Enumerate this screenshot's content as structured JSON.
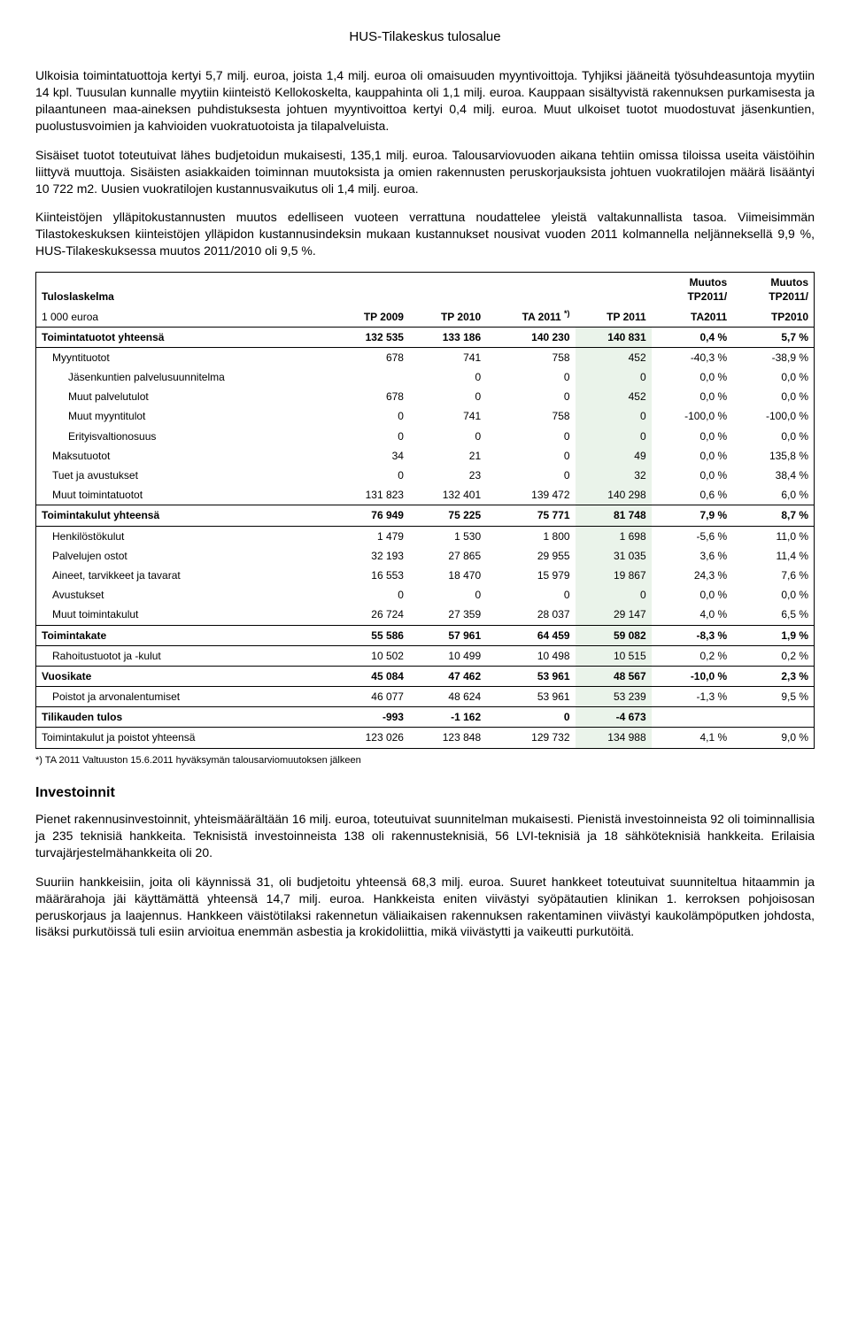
{
  "header": {
    "title": "HUS-Tilakeskus tulosalue"
  },
  "paragraphs": {
    "p1": "Ulkoisia toimintatuottoja kertyi 5,7 milj. euroa, joista 1,4 milj. euroa oli omaisuuden myyntivoittoja. Tyhjiksi jääneitä työsuhdeasuntoja myytiin 14 kpl. Tuusulan kunnalle myytiin kiinteistö Kellokoskelta, kauppahinta oli 1,1 milj. euroa. Kauppaan sisältyvistä rakennuksen purkamisesta ja pilaantuneen maa-aineksen puhdistuksesta johtuen myyntivoittoa kertyi 0,4 milj. euroa. Muut ulkoiset tuotot muodostuvat jäsenkuntien, puolustusvoimien ja kahvioiden vuokratuotoista ja tilapalveluista.",
    "p2": "Sisäiset tuotot toteutuivat lähes budjetoidun mukaisesti, 135,1 milj. euroa. Talousarviovuoden aikana tehtiin omissa tiloissa useita väistöihin liittyvä muuttoja. Sisäisten asiakkaiden toiminnan muutoksista ja omien rakennusten peruskorjauksista johtuen vuokratilojen määrä lisääntyi 10 722 m2. Uusien vuokratilojen kustannusvaikutus oli 1,4 milj. euroa.",
    "p3": "Kiinteistöjen ylläpitokustannusten muutos edelliseen vuoteen verrattuna noudattelee yleistä valtakunnallista tasoa. Viimeisimmän Tilastokeskuksen kiinteistöjen ylläpidon kustannusindeksin mukaan kustannukset nousivat vuoden 2011 kolmannella neljänneksellä 9,9 %, HUS-Tilakeskuksessa muutos 2011/2010 oli 9,5 %.",
    "footnote": "*) TA 2011 Valtuuston 15.6.2011 hyväksymän talousarviomuutoksen jälkeen",
    "invest_heading": "Investoinnit",
    "p4": "Pienet rakennusinvestoinnit, yhteismäärältään 16 milj. euroa, toteutuivat suunnitelman mukaisesti. Pienistä investoinneista 92 oli toiminnallisia ja 235 teknisiä hankkeita. Teknisistä investoinneista 138 oli rakennusteknisiä, 56 LVI-teknisiä ja 18 sähköteknisiä hankkeita. Erilaisia turvajärjestelmähankkeita oli 20.",
    "p5": "Suuriin hankkeisiin, joita oli käynnissä 31, oli budjetoitu yhteensä 68,3 milj. euroa. Suuret hankkeet toteutuivat suunniteltua hitaammin ja määrärahoja jäi käyttämättä yhteensä 14,7 milj. euroa. Hankkeista eniten viivästyi syöpätautien klinikan 1. kerroksen pohjoisosan peruskorjaus ja laajennus. Hankkeen väistötilaksi rakennetun väliaikaisen rakennuksen rakentaminen viivästyi kaukolämpöputken johdosta, lisäksi purkutöissä tuli esiin arvioitua enemmän asbestia ja krokidoliittia, mikä viivästytti ja vaikeutti purkutöitä."
  },
  "table": {
    "font_size": 12,
    "header_bg": "#ffffff",
    "highlight_bg": "#eaf3ea",
    "border_color": "#000000",
    "title_row": "Tuloslaskelma",
    "unit_row": "1 000 euroa",
    "columns": [
      "",
      "TP 2009",
      "TP 2010",
      "TA 2011 *)",
      "TP 2011",
      "Muutos TP2011/ TA2011",
      "Muutos TP2011/ TP2010"
    ],
    "col_head": {
      "c1": "TP 2009",
      "c2": "TP 2010",
      "c3": "TA 2011",
      "c3_sup": "*)",
      "c4": "TP 2011",
      "c5a": "Muutos",
      "c5b": "TP2011/",
      "c5c": "TA2011",
      "c6a": "Muutos",
      "c6b": "TP2011/",
      "c6c": "TP2010"
    },
    "rows": [
      {
        "label": "Toimintatuotot yhteensä",
        "v": [
          "132 535",
          "133 186",
          "140 230",
          "140 831",
          "0,4 %",
          "5,7 %"
        ],
        "bold": true,
        "indent": 0,
        "bt": true,
        "bb": true
      },
      {
        "label": "Myyntituotot",
        "v": [
          "678",
          "741",
          "758",
          "452",
          "-40,3 %",
          "-38,9 %"
        ],
        "indent": 1
      },
      {
        "label": "Jäsenkuntien palvelusuunnitelma",
        "v": [
          "",
          "0",
          "0",
          "0",
          "0,0 %",
          "0,0 %"
        ],
        "indent": 2
      },
      {
        "label": "Muut palvelutulot",
        "v": [
          "678",
          "0",
          "0",
          "452",
          "0,0 %",
          "0,0 %"
        ],
        "indent": 2
      },
      {
        "label": "Muut myyntitulot",
        "v": [
          "0",
          "741",
          "758",
          "0",
          "-100,0 %",
          "-100,0 %"
        ],
        "indent": 2
      },
      {
        "label": "Erityisvaltionosuus",
        "v": [
          "0",
          "0",
          "0",
          "0",
          "0,0 %",
          "0,0 %"
        ],
        "indent": 2
      },
      {
        "label": "Maksutuotot",
        "v": [
          "34",
          "21",
          "0",
          "49",
          "0,0 %",
          "135,8 %"
        ],
        "indent": 1
      },
      {
        "label": "Tuet ja avustukset",
        "v": [
          "0",
          "23",
          "0",
          "32",
          "0,0 %",
          "38,4 %"
        ],
        "indent": 1
      },
      {
        "label": "Muut toimintatuotot",
        "v": [
          "131 823",
          "132 401",
          "139 472",
          "140 298",
          "0,6 %",
          "6,0 %"
        ],
        "indent": 1,
        "bb": true
      },
      {
        "label": "Toimintakulut yhteensä",
        "v": [
          "76 949",
          "75 225",
          "75 771",
          "81 748",
          "7,9 %",
          "8,7 %"
        ],
        "bold": true,
        "indent": 0,
        "bb": true
      },
      {
        "label": "Henkilöstökulut",
        "v": [
          "1 479",
          "1 530",
          "1 800",
          "1 698",
          "-5,6 %",
          "11,0 %"
        ],
        "indent": 1
      },
      {
        "label": "Palvelujen ostot",
        "v": [
          "32 193",
          "27 865",
          "29 955",
          "31 035",
          "3,6 %",
          "11,4 %"
        ],
        "indent": 1
      },
      {
        "label": "Aineet, tarvikkeet ja tavarat",
        "v": [
          "16 553",
          "18 470",
          "15 979",
          "19 867",
          "24,3 %",
          "7,6 %"
        ],
        "indent": 1
      },
      {
        "label": "Avustukset",
        "v": [
          "0",
          "0",
          "0",
          "0",
          "0,0 %",
          "0,0 %"
        ],
        "indent": 1
      },
      {
        "label": "Muut toimintakulut",
        "v": [
          "26 724",
          "27 359",
          "28 037",
          "29 147",
          "4,0 %",
          "6,5 %"
        ],
        "indent": 1,
        "bb": true
      },
      {
        "label": "Toimintakate",
        "v": [
          "55 586",
          "57 961",
          "64 459",
          "59 082",
          "-8,3 %",
          "1,9 %"
        ],
        "bold": true,
        "indent": 0,
        "bb": true
      },
      {
        "label": "Rahoitustuotot ja -kulut",
        "v": [
          "10 502",
          "10 499",
          "10 498",
          "10 515",
          "0,2 %",
          "0,2 %"
        ],
        "indent": 1,
        "bb": true
      },
      {
        "label": "Vuosikate",
        "v": [
          "45 084",
          "47 462",
          "53 961",
          "48 567",
          "-10,0 %",
          "2,3 %"
        ],
        "bold": true,
        "indent": 0,
        "bb": true
      },
      {
        "label": "Poistot ja arvonalentumiset",
        "v": [
          "46 077",
          "48 624",
          "53 961",
          "53 239",
          "-1,3 %",
          "9,5 %"
        ],
        "indent": 1,
        "bb": true
      },
      {
        "label": "Tilikauden tulos",
        "v": [
          "-993",
          "-1 162",
          "0",
          "-4 673",
          "",
          ""
        ],
        "bold": true,
        "indent": 0,
        "bb": true
      },
      {
        "label": "Toimintakulut ja poistot yhteensä",
        "v": [
          "123 026",
          "123 848",
          "129 732",
          "134 988",
          "4,1 %",
          "9,0 %"
        ],
        "indent": 0
      }
    ]
  }
}
